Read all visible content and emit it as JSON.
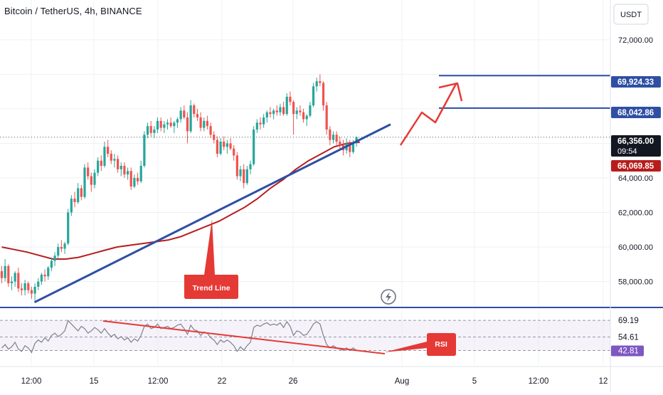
{
  "header": {
    "title": "Bitcoin / TetherUS, 4h, BINANCE"
  },
  "currency_button": {
    "label": "USDT"
  },
  "chart_data": {
    "type": "candlestick",
    "symbol": "Bitcoin / TetherUS",
    "interval": "4h",
    "exchange": "BINANCE",
    "price_axis": {
      "ticks": [
        {
          "value": 72000,
          "label": "72,000.00"
        },
        {
          "value": 64000,
          "label": "64,000.00"
        },
        {
          "value": 62000,
          "label": "62,000.00"
        },
        {
          "value": 60000,
          "label": "60,000.00"
        },
        {
          "value": 58000,
          "label": "58,000.00"
        }
      ],
      "range": [
        56500,
        74300
      ]
    },
    "price_labels": [
      {
        "value": 69924.33,
        "label": "69,924.33",
        "color": "#2e4fa3"
      },
      {
        "value": 68042.86,
        "label": "68,042.86",
        "color": "#2e4fa3"
      },
      {
        "value": 66356.0,
        "label": "66,356.00",
        "sublabel": "09:54",
        "color": "#131722"
      },
      {
        "value": 66069.85,
        "label": "66,069.85",
        "color": "#b71c1c"
      }
    ],
    "horizontal_levels": [
      69924.33,
      68042.86
    ],
    "time_axis": [
      "12:00",
      "15",
      "12:00",
      "22",
      "26",
      "Aug",
      "5",
      "12:00",
      "12"
    ],
    "candles": [
      [
        58600,
        58900,
        57900,
        58200
      ],
      [
        58200,
        59300,
        58000,
        58900
      ],
      [
        58900,
        59000,
        57700,
        57900
      ],
      [
        57900,
        58300,
        57500,
        58000
      ],
      [
        58000,
        58600,
        57700,
        58500
      ],
      [
        58500,
        58800,
        57400,
        57600
      ],
      [
        57600,
        57900,
        57200,
        57500
      ],
      [
        57500,
        58100,
        57200,
        57900
      ],
      [
        57900,
        58000,
        57300,
        57500
      ],
      [
        57500,
        57700,
        57000,
        57300
      ],
      [
        57300,
        57900,
        56900,
        57700
      ],
      [
        57700,
        58200,
        57500,
        58000
      ],
      [
        58000,
        58500,
        57800,
        58400
      ],
      [
        58400,
        58700,
        58000,
        58300
      ],
      [
        58300,
        58900,
        58100,
        58800
      ],
      [
        58800,
        59400,
        58600,
        59200
      ],
      [
        59200,
        59700,
        58900,
        59500
      ],
      [
        59500,
        60200,
        59300,
        60000
      ],
      [
        60000,
        60400,
        59700,
        59900
      ],
      [
        59900,
        60300,
        59600,
        60200
      ],
      [
        60200,
        62200,
        60100,
        62000
      ],
      [
        62000,
        63000,
        61800,
        62800
      ],
      [
        62800,
        63200,
        62300,
        62600
      ],
      [
        62600,
        63700,
        62500,
        63400
      ],
      [
        63400,
        63600,
        62700,
        62900
      ],
      [
        62900,
        64800,
        62800,
        64600
      ],
      [
        64600,
        64900,
        63900,
        64100
      ],
      [
        64100,
        64300,
        63200,
        63600
      ],
      [
        63600,
        64500,
        63400,
        64300
      ],
      [
        64300,
        65200,
        64100,
        65000
      ],
      [
        65000,
        65300,
        64400,
        64700
      ],
      [
        64700,
        66100,
        64600,
        65800
      ],
      [
        65800,
        66200,
        65200,
        65400
      ],
      [
        65400,
        65600,
        64800,
        65000
      ],
      [
        65000,
        65400,
        64600,
        65100
      ],
      [
        65100,
        65300,
        64300,
        64500
      ],
      [
        64500,
        64900,
        64100,
        64700
      ],
      [
        64700,
        64900,
        64000,
        64200
      ],
      [
        64200,
        64600,
        63900,
        64400
      ],
      [
        64400,
        64600,
        63300,
        63500
      ],
      [
        63500,
        64200,
        63400,
        64000
      ],
      [
        64000,
        64300,
        63600,
        63800
      ],
      [
        63800,
        65000,
        63700,
        64700
      ],
      [
        64700,
        66700,
        64600,
        66500
      ],
      [
        66500,
        67200,
        66300,
        67000
      ],
      [
        67000,
        67300,
        66400,
        66600
      ],
      [
        66600,
        67000,
        66300,
        66800
      ],
      [
        66800,
        67500,
        66600,
        67300
      ],
      [
        67300,
        67500,
        66700,
        66900
      ],
      [
        66900,
        67300,
        66600,
        67100
      ],
      [
        67100,
        67400,
        66800,
        67200
      ],
      [
        67200,
        67500,
        66900,
        67000
      ],
      [
        67000,
        67300,
        66600,
        67200
      ],
      [
        67200,
        67500,
        66900,
        67400
      ],
      [
        67400,
        68100,
        67200,
        67900
      ],
      [
        67900,
        68200,
        67400,
        67500
      ],
      [
        67500,
        67800,
        66000,
        66700
      ],
      [
        66700,
        68500,
        66600,
        68200
      ],
      [
        68200,
        68300,
        67500,
        67700
      ],
      [
        67700,
        68000,
        67300,
        67500
      ],
      [
        67500,
        67800,
        66700,
        66900
      ],
      [
        66900,
        67500,
        66700,
        67300
      ],
      [
        67300,
        67600,
        66800,
        67000
      ],
      [
        67000,
        67200,
        66300,
        66500
      ],
      [
        66500,
        66700,
        66000,
        66200
      ],
      [
        66200,
        66400,
        65200,
        65400
      ],
      [
        65400,
        66300,
        65300,
        66100
      ],
      [
        66100,
        66400,
        65600,
        65800
      ],
      [
        65800,
        66200,
        65400,
        66000
      ],
      [
        66000,
        66300,
        65600,
        65700
      ],
      [
        65700,
        65900,
        65000,
        65300
      ],
      [
        65300,
        65500,
        63900,
        64100
      ],
      [
        64100,
        64700,
        63800,
        64500
      ],
      [
        64500,
        64800,
        63400,
        63700
      ],
      [
        63700,
        64700,
        63600,
        64500
      ],
      [
        64500,
        65000,
        64200,
        64800
      ],
      [
        64800,
        67000,
        64700,
        66800
      ],
      [
        66800,
        67400,
        66600,
        67200
      ],
      [
        67200,
        67500,
        66800,
        67100
      ],
      [
        67100,
        67700,
        66900,
        67500
      ],
      [
        67500,
        67900,
        67200,
        67800
      ],
      [
        67800,
        68100,
        67500,
        67700
      ],
      [
        67700,
        68000,
        67400,
        67900
      ],
      [
        67900,
        68200,
        67600,
        67800
      ],
      [
        67800,
        68300,
        67600,
        68100
      ],
      [
        68100,
        68400,
        67600,
        67700
      ],
      [
        67700,
        68900,
        67600,
        68700
      ],
      [
        68700,
        69000,
        68200,
        68400
      ],
      [
        68400,
        68500,
        66500,
        67700
      ],
      [
        67700,
        68100,
        67400,
        67900
      ],
      [
        67900,
        68200,
        67600,
        67800
      ],
      [
        67800,
        68000,
        67200,
        67400
      ],
      [
        67400,
        67700,
        67000,
        67600
      ],
      [
        67600,
        68400,
        67500,
        68200
      ],
      [
        68200,
        69500,
        68100,
        69300
      ],
      [
        69300,
        69800,
        69000,
        69600
      ],
      [
        69600,
        70000,
        69300,
        69500
      ],
      [
        69500,
        69600,
        67900,
        68200
      ],
      [
        68200,
        68400,
        66500,
        66800
      ],
      [
        66800,
        67000,
        65900,
        66200
      ],
      [
        66200,
        66700,
        66000,
        66500
      ],
      [
        66500,
        66700,
        65900,
        66100
      ],
      [
        66100,
        66400,
        65600,
        65900
      ],
      [
        65900,
        66200,
        65300,
        65600
      ],
      [
        65600,
        66300,
        65400,
        66000
      ],
      [
        66000,
        66200,
        65200,
        65500
      ],
      [
        65500,
        66200,
        65400,
        66000
      ],
      [
        66000,
        66400,
        65800,
        66356
      ]
    ],
    "moving_average": {
      "color": "#b71c1c",
      "points": [
        [
          0,
          60000
        ],
        [
          10,
          59850
        ],
        [
          20,
          59700
        ],
        [
          30,
          59500
        ],
        [
          40,
          59300
        ],
        [
          50,
          59300
        ],
        [
          60,
          59400
        ],
        [
          70,
          59600
        ],
        [
          80,
          59800
        ],
        [
          90,
          60000
        ],
        [
          100,
          60100
        ],
        [
          110,
          60200
        ],
        [
          120,
          60300
        ],
        [
          130,
          60400
        ],
        [
          140,
          60600
        ],
        [
          150,
          60900
        ],
        [
          160,
          61200
        ],
        [
          170,
          61500
        ],
        [
          180,
          61900
        ],
        [
          190,
          62300
        ],
        [
          200,
          62800
        ],
        [
          210,
          63400
        ],
        [
          220,
          63900
        ],
        [
          230,
          64500
        ],
        [
          240,
          65000
        ],
        [
          250,
          65400
        ],
        [
          260,
          65800
        ],
        [
          270,
          66000
        ],
        [
          280,
          66070
        ]
      ]
    },
    "trend_line": {
      "color": "#2e4fa3",
      "from": [
        0,
        56800
      ],
      "to": [
        290,
        67100
      ]
    },
    "projection_arrow": {
      "color": "#e53935",
      "points": [
        [
          287,
          66300
        ],
        [
          305,
          68000
        ],
        [
          318,
          67600
        ],
        [
          335,
          69800
        ]
      ]
    },
    "annotations": [
      {
        "text": "Trend Line",
        "color": "#e53935"
      },
      {
        "text": "RSI",
        "color": "#e53935"
      }
    ],
    "rsi": {
      "levels": [
        69.19,
        54.61,
        42.81
      ],
      "level_labels": [
        "69.19",
        "54.61",
        "42.81"
      ],
      "range": [
        30,
        78
      ],
      "values": [
        45,
        48,
        44,
        46,
        50,
        44,
        42,
        47,
        45,
        41,
        49,
        52,
        50,
        54,
        51,
        56,
        58,
        55,
        57,
        60,
        69,
        66,
        63,
        60,
        64,
        62,
        58,
        60,
        63,
        61,
        58,
        62,
        58,
        55,
        57,
        53,
        55,
        52,
        54,
        50,
        53,
        51,
        56,
        64,
        66,
        62,
        63,
        66,
        62,
        63,
        64,
        62,
        63,
        65,
        66,
        62,
        57,
        65,
        61,
        60,
        56,
        59,
        58,
        54,
        52,
        48,
        52,
        50,
        52,
        50,
        47,
        42,
        46,
        43,
        47,
        50,
        63,
        65,
        64,
        66,
        67,
        65,
        66,
        65,
        67,
        63,
        68,
        64,
        56,
        60,
        59,
        56,
        57,
        61,
        66,
        68,
        66,
        56,
        48,
        45,
        47,
        45,
        44,
        43,
        45,
        43,
        45,
        42.81
      ],
      "trend_line": {
        "color": "#e53935",
        "from": [
          16,
          71
        ],
        "to": [
          105,
          43
        ]
      }
    }
  }
}
